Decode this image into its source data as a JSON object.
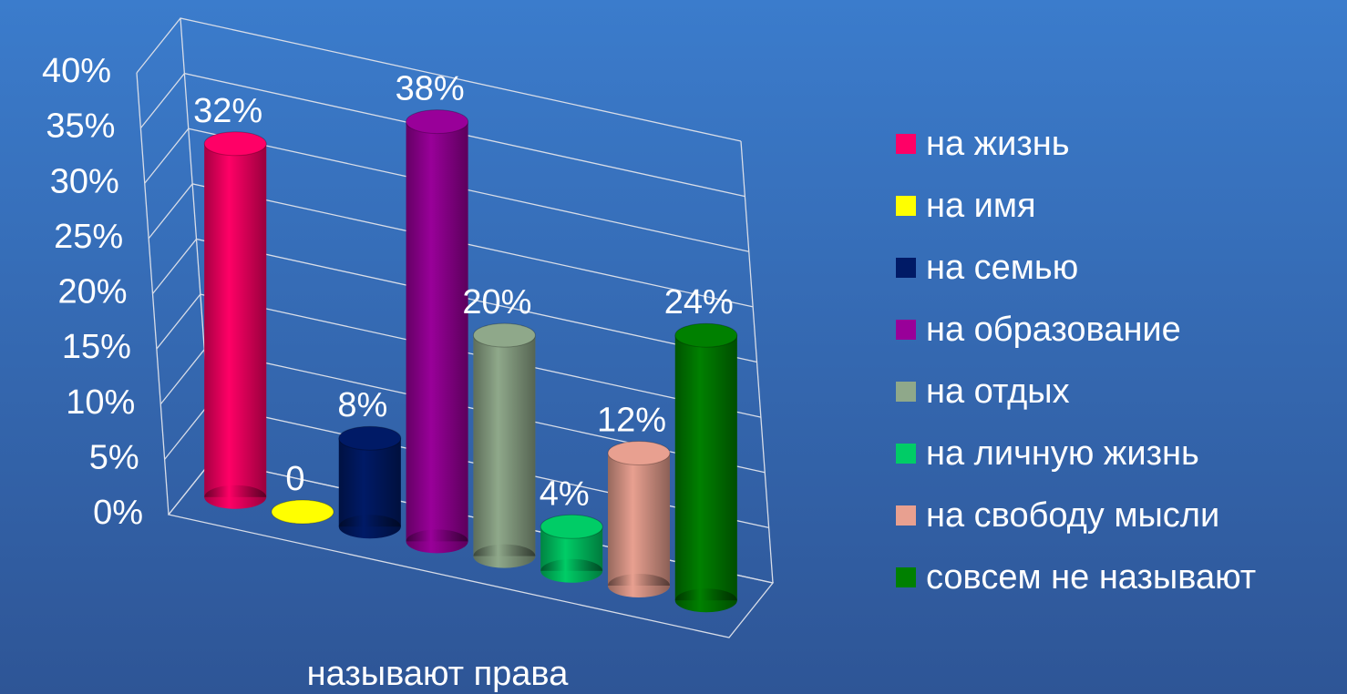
{
  "chart_data": {
    "type": "bar",
    "categories": [
      "называют права"
    ],
    "series": [
      {
        "name": "на жизнь",
        "color": "#ff0066",
        "values": [
          32
        ],
        "value_labels": [
          "32%"
        ]
      },
      {
        "name": "на имя",
        "color": "#ffff00",
        "values": [
          0
        ],
        "value_labels": [
          "0"
        ]
      },
      {
        "name": "на семью",
        "color": "#001a66",
        "values": [
          8
        ],
        "value_labels": [
          "8%"
        ]
      },
      {
        "name": "на образование",
        "color": "#990099",
        "values": [
          38
        ],
        "value_labels": [
          "38%"
        ]
      },
      {
        "name": "на отдых",
        "color": "#8fa88a",
        "values": [
          20
        ],
        "value_labels": [
          "20%"
        ]
      },
      {
        "name": "на личную жизнь",
        "color": "#00cc66",
        "values": [
          4
        ],
        "value_labels": [
          "4%"
        ]
      },
      {
        "name": "на свободу мысли",
        "color": "#e8a090",
        "values": [
          12
        ],
        "value_labels": [
          "12%"
        ]
      },
      {
        "name": "совсем не называют",
        "color": "#008000",
        "values": [
          24
        ],
        "value_labels": [
          "24%"
        ]
      }
    ],
    "ylim": [
      0,
      40
    ],
    "yticks": [
      {
        "value": 0,
        "label": "0%"
      },
      {
        "value": 5,
        "label": "5%"
      },
      {
        "value": 10,
        "label": "10%"
      },
      {
        "value": 15,
        "label": "15%"
      },
      {
        "value": 20,
        "label": "20%"
      },
      {
        "value": 25,
        "label": "25%"
      },
      {
        "value": 30,
        "label": "30%"
      },
      {
        "value": 35,
        "label": "35%"
      },
      {
        "value": 40,
        "label": "40%"
      }
    ],
    "grid": true,
    "legend": "right"
  }
}
